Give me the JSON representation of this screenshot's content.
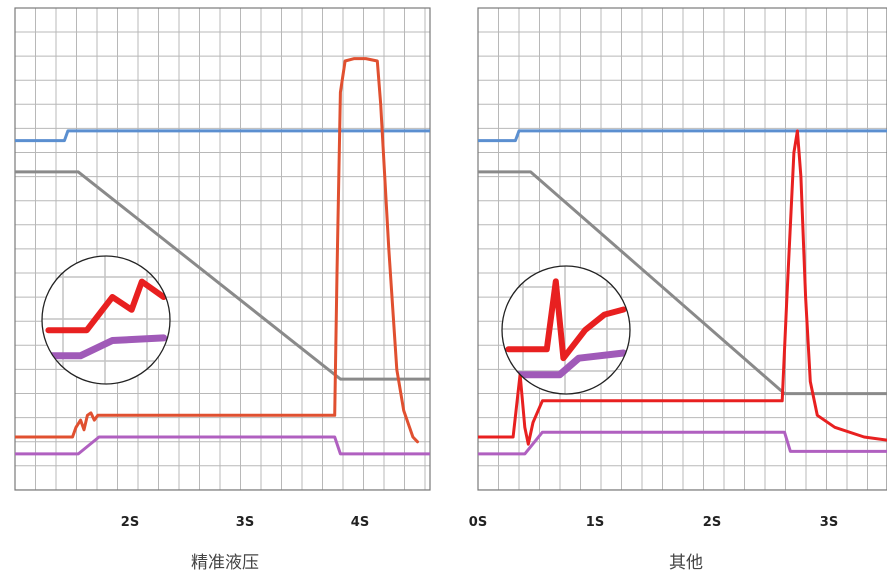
{
  "chart_data": [
    {
      "type": "line",
      "caption": "精准液压",
      "xlabel": "",
      "ylabel": "",
      "grid": true,
      "xlim": [
        1.0,
        4.8
      ],
      "ylim": [
        0,
        20
      ],
      "x_tick_labels": [
        {
          "x": 2,
          "label": "2S"
        },
        {
          "x": 3,
          "label": "3S"
        },
        {
          "x": 4,
          "label": "4S"
        }
      ],
      "series": [
        {
          "color": "#5b8fd0",
          "points": [
            [
              1.0,
              14.5
            ],
            [
              1.43,
              14.5
            ],
            [
              1.46,
              14.9
            ],
            [
              4.8,
              14.9
            ]
          ]
        },
        {
          "color": "#8a8a8a",
          "points": [
            [
              1.0,
              13.2
            ],
            [
              1.55,
              13.2
            ],
            [
              3.83,
              4.6
            ],
            [
              4.8,
              4.6
            ]
          ]
        },
        {
          "color": "#e05030",
          "points": [
            [
              1.0,
              2.2
            ],
            [
              1.5,
              2.2
            ],
            [
              1.53,
              2.6
            ],
            [
              1.57,
              2.9
            ],
            [
              1.6,
              2.5
            ],
            [
              1.63,
              3.1
            ],
            [
              1.66,
              3.2
            ],
            [
              1.69,
              2.9
            ],
            [
              1.72,
              3.1
            ],
            [
              3.78,
              3.1
            ],
            [
              3.8,
              9
            ],
            [
              3.83,
              16.5
            ],
            [
              3.87,
              17.8
            ],
            [
              3.95,
              17.9
            ],
            [
              4.05,
              17.9
            ],
            [
              4.15,
              17.8
            ],
            [
              4.18,
              16
            ],
            [
              4.25,
              10
            ],
            [
              4.32,
              5
            ],
            [
              4.38,
              3.3
            ],
            [
              4.46,
              2.2
            ],
            [
              4.5,
              2.0
            ]
          ]
        },
        {
          "color": "#b060c0",
          "points": [
            [
              1.0,
              1.5
            ],
            [
              1.55,
              1.5
            ],
            [
              1.73,
              2.2
            ],
            [
              3.78,
              2.2
            ],
            [
              3.83,
              1.5
            ],
            [
              4.8,
              1.5
            ]
          ]
        }
      ],
      "inset": {
        "series": [
          {
            "color": "#e82020",
            "points": [
              [
                0.05,
                0.58
              ],
              [
                0.35,
                0.58
              ],
              [
                0.55,
                0.32
              ],
              [
                0.7,
                0.42
              ],
              [
                0.78,
                0.2
              ],
              [
                0.95,
                0.32
              ]
            ]
          },
          {
            "color": "#a05ab8",
            "points": [
              [
                0.05,
                0.78
              ],
              [
                0.3,
                0.78
              ],
              [
                0.55,
                0.66
              ],
              [
                0.95,
                0.64
              ]
            ]
          }
        ]
      },
      "colors": {
        "grid": "#b8b8b8",
        "border": "#7a7a7a"
      }
    },
    {
      "type": "line",
      "caption": "其他",
      "xlabel": "",
      "ylabel": "",
      "grid": true,
      "xlim": [
        0,
        3.6
      ],
      "ylim": [
        0,
        20
      ],
      "x_tick_labels": [
        {
          "x": 0,
          "label": "0S"
        },
        {
          "x": 1,
          "label": "1S"
        },
        {
          "x": 2,
          "label": "2S"
        },
        {
          "x": 3,
          "label": "3S"
        }
      ],
      "series": [
        {
          "color": "#5b8fd0",
          "points": [
            [
              -0.1,
              14.5
            ],
            [
              0.32,
              14.5
            ],
            [
              0.35,
              14.9
            ],
            [
              3.7,
              14.9
            ]
          ]
        },
        {
          "color": "#8a8a8a",
          "points": [
            [
              -0.1,
              13.2
            ],
            [
              0.45,
              13.2
            ],
            [
              2.62,
              4.0
            ],
            [
              3.7,
              4.0
            ]
          ]
        },
        {
          "color": "#e82020",
          "points": [
            [
              -0.1,
              2.2
            ],
            [
              0.3,
              2.2
            ],
            [
              0.36,
              4.8
            ],
            [
              0.4,
              2.6
            ],
            [
              0.43,
              1.9
            ],
            [
              0.47,
              2.8
            ],
            [
              0.55,
              3.7
            ],
            [
              2.6,
              3.7
            ],
            [
              2.64,
              8
            ],
            [
              2.7,
              14
            ],
            [
              2.73,
              14.9
            ],
            [
              2.76,
              13
            ],
            [
              2.8,
              8
            ],
            [
              2.84,
              4.5
            ],
            [
              2.9,
              3.1
            ],
            [
              3.05,
              2.6
            ],
            [
              3.3,
              2.2
            ],
            [
              3.6,
              2.0
            ]
          ]
        },
        {
          "color": "#b060c0",
          "points": [
            [
              -0.1,
              1.5
            ],
            [
              0.4,
              1.5
            ],
            [
              0.55,
              2.4
            ],
            [
              2.62,
              2.4
            ],
            [
              2.67,
              1.6
            ],
            [
              3.7,
              1.6
            ]
          ]
        }
      ],
      "inset": {
        "series": [
          {
            "color": "#e82020",
            "points": [
              [
                0.05,
                0.65
              ],
              [
                0.35,
                0.65
              ],
              [
                0.42,
                0.12
              ],
              [
                0.48,
                0.72
              ],
              [
                0.65,
                0.5
              ],
              [
                0.8,
                0.38
              ],
              [
                0.95,
                0.34
              ]
            ]
          },
          {
            "color": "#a05ab8",
            "points": [
              [
                0.05,
                0.85
              ],
              [
                0.45,
                0.85
              ],
              [
                0.6,
                0.72
              ],
              [
                0.95,
                0.68
              ]
            ]
          }
        ]
      },
      "colors": {
        "grid": "#b8b8b8",
        "border": "#7a7a7a"
      }
    }
  ]
}
